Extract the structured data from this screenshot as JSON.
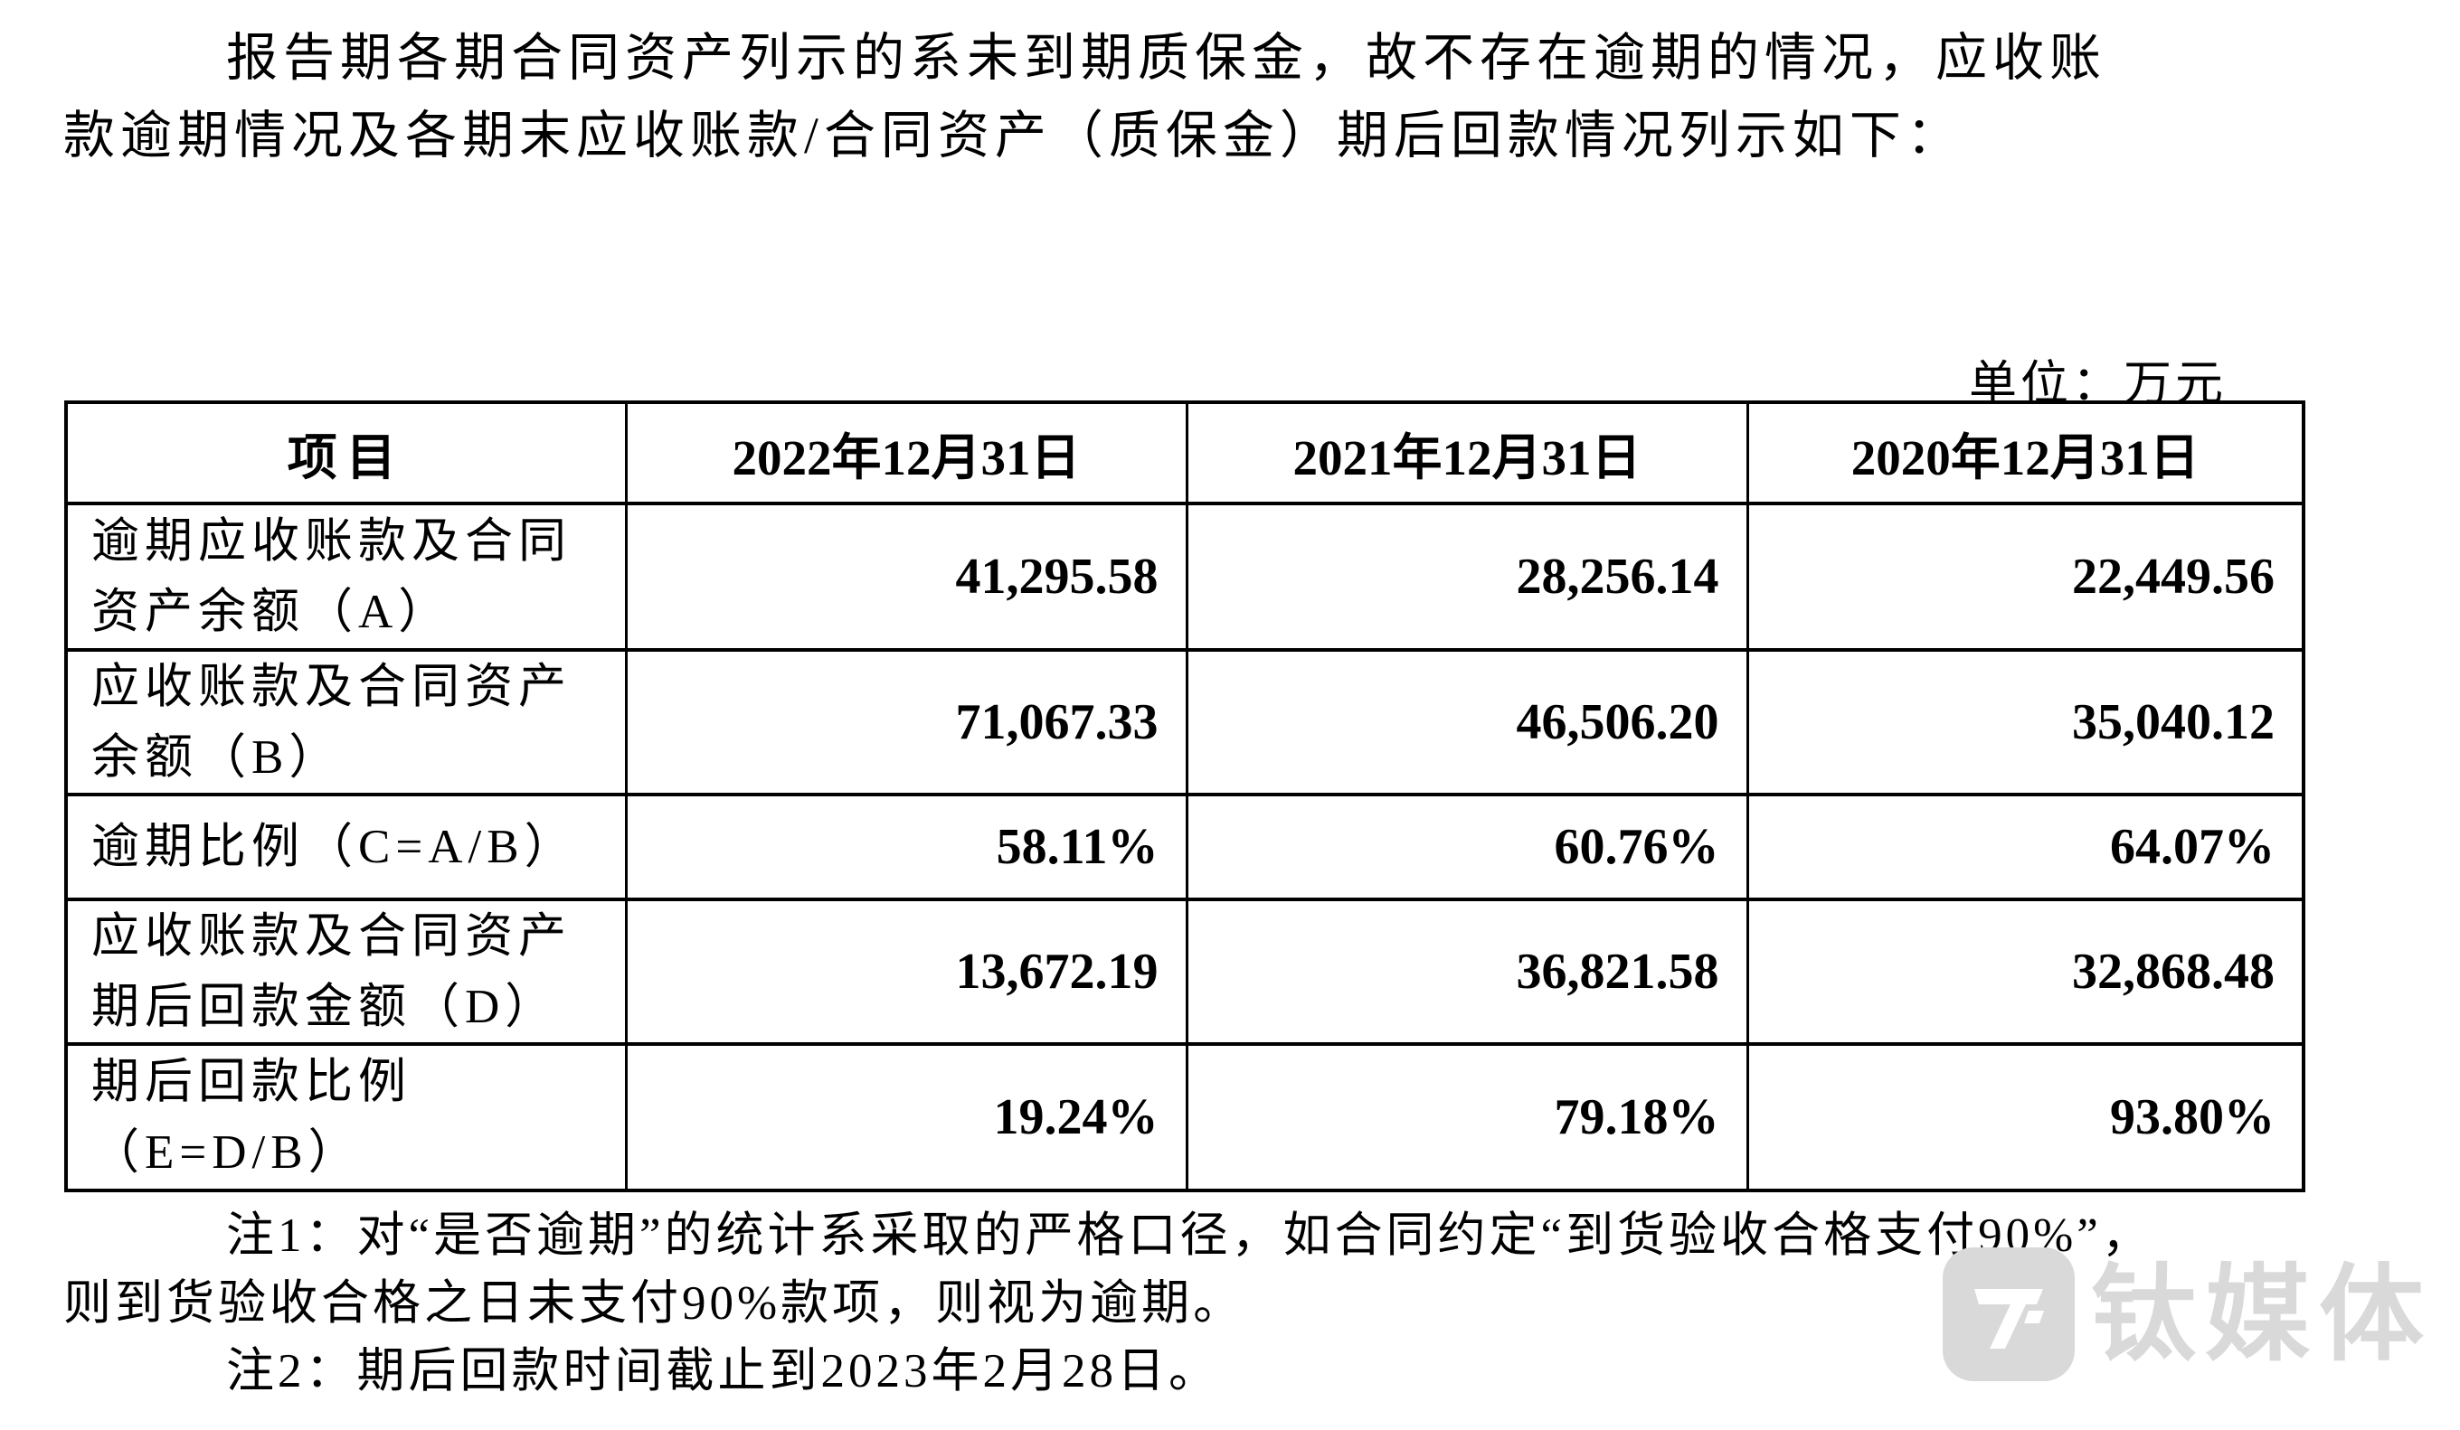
{
  "intro": {
    "line1": "报告期各期合同资产列示的系未到期质保金，故不存在逾期的情况，应收账",
    "line2": "款逾期情况及各期末应收账款/合同资产（质保金）期后回款情况列示如下："
  },
  "unit_label": "单位：万元",
  "table": {
    "columns": [
      "项目",
      "2022年12月31日",
      "2021年12月31日",
      "2020年12月31日"
    ],
    "rows": [
      {
        "label_lines": [
          "逾期应收账款及合同",
          "资产余额（A）"
        ],
        "values": [
          "41,295.58",
          "28,256.14",
          "22,449.56"
        ]
      },
      {
        "label_lines": [
          "应收账款及合同资产",
          "余额（B）"
        ],
        "values": [
          "71,067.33",
          "46,506.20",
          "35,040.12"
        ]
      },
      {
        "label_lines": [
          "逾期比例（C=A/B）"
        ],
        "values": [
          "58.11%",
          "60.76%",
          "64.07%"
        ]
      },
      {
        "label_lines": [
          "应收账款及合同资产",
          "期后回款金额（D）"
        ],
        "values": [
          "13,672.19",
          "36,821.58",
          "32,868.48"
        ]
      },
      {
        "label_lines": [
          "期后回款比例",
          "（E=D/B）"
        ],
        "values": [
          "19.24%",
          "79.18%",
          "93.80%"
        ]
      }
    ]
  },
  "notes": {
    "note1_line1": "注1：对“是否逾期”的统计系采取的严格口径，如合同约定“到货验收合格支付90%”，",
    "note1_line2": "则到货验收合格之日未支付90%款项，则视为逾期。",
    "note2": "注2：期后回款时间截止到2023年2月28日。"
  },
  "watermark": {
    "text": "钛媒体",
    "color": "#d9d9d9"
  }
}
